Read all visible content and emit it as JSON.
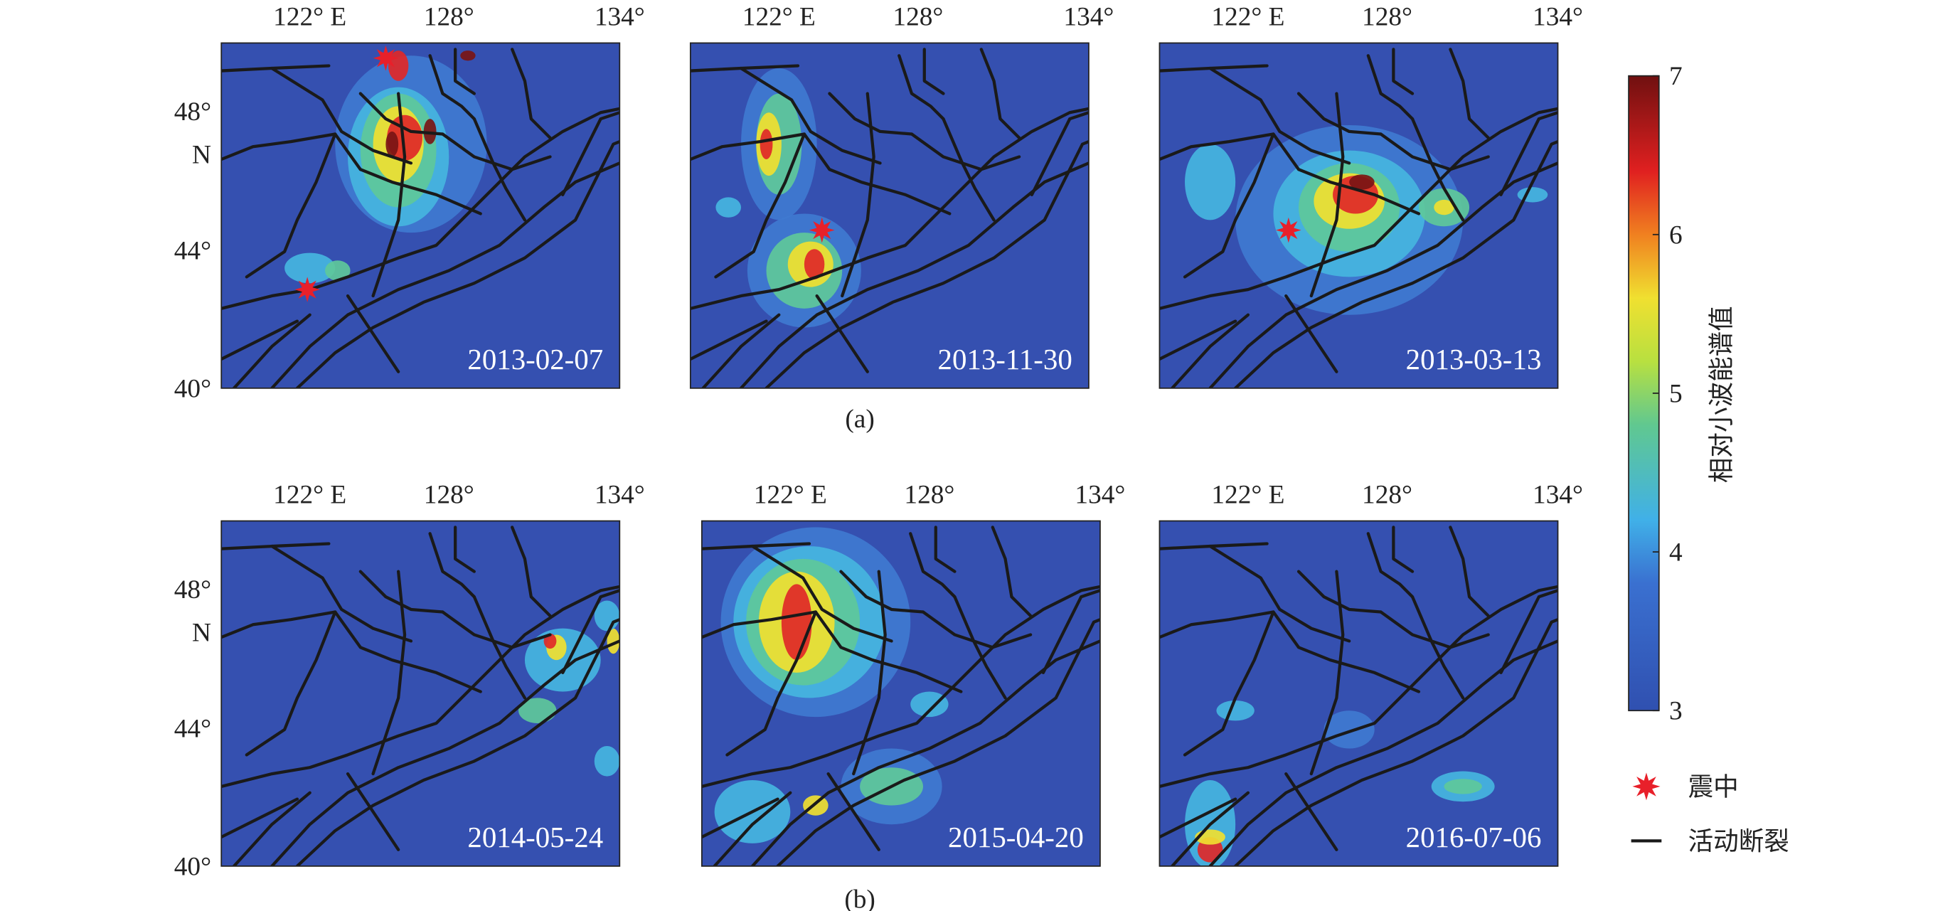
{
  "panels": [
    {
      "date": "2013-02-07"
    },
    {
      "date": "2013-11-30"
    },
    {
      "date": "2013-03-13"
    },
    {
      "date": "2014-05-24"
    },
    {
      "date": "2015-04-20"
    },
    {
      "date": "2016-07-06"
    }
  ],
  "lon_ticks": [
    "122° E",
    "128°",
    "134°"
  ],
  "lat_ticks": [
    "48°",
    "N",
    "44°",
    "40°"
  ],
  "group_labels": [
    "(a)",
    "(b)"
  ],
  "colorbar": {
    "title": "相对小波能谱值",
    "lim": [
      3,
      7
    ],
    "ticks": [
      3,
      4,
      5,
      6,
      7
    ]
  },
  "legend": [
    "震中",
    "活动断裂"
  ]
}
